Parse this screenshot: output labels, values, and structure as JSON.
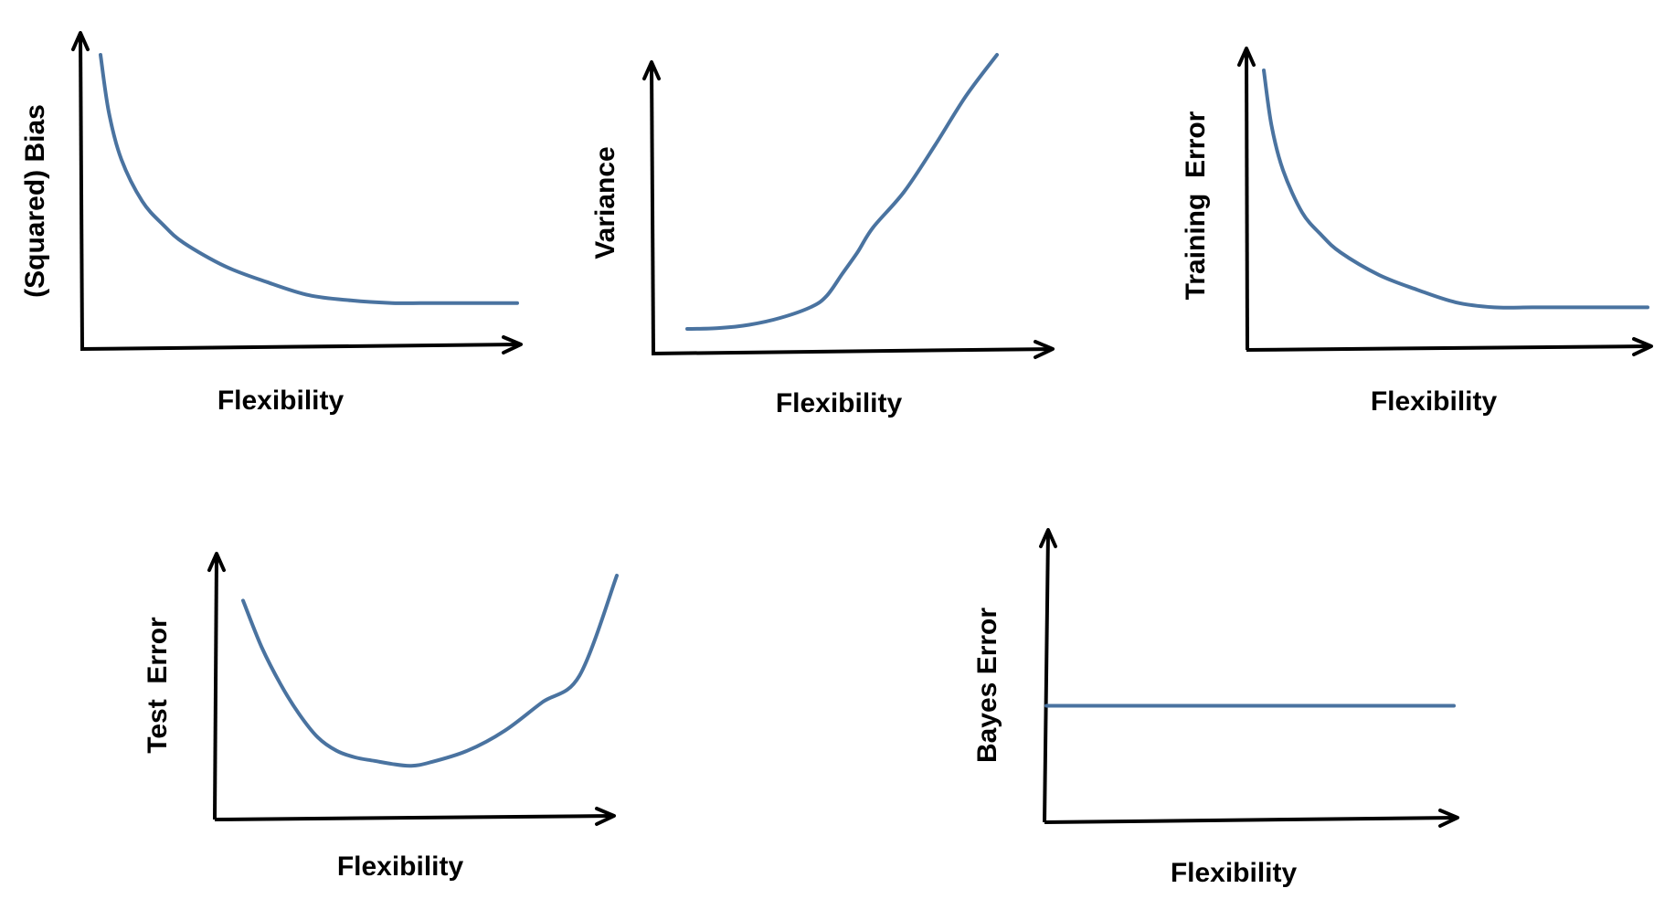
{
  "colors": {
    "curve": "#4a73a0",
    "axis": "#000000",
    "background": "#ffffff"
  },
  "chart_data": [
    {
      "type": "line",
      "title": "",
      "xlabel": "Flexibility",
      "ylabel": "(Squared) Bias",
      "grid": false,
      "x": [
        0.0,
        0.02,
        0.05,
        0.1,
        0.15,
        0.2,
        0.3,
        0.4,
        0.5,
        0.6,
        0.7,
        0.8,
        0.9,
        1.0
      ],
      "y": [
        1.0,
        0.78,
        0.6,
        0.44,
        0.35,
        0.28,
        0.19,
        0.13,
        0.08,
        0.06,
        0.05,
        0.05,
        0.05,
        0.05
      ]
    },
    {
      "type": "line",
      "title": "",
      "xlabel": "Flexibility",
      "ylabel": "Variance",
      "grid": false,
      "x": [
        0.0,
        0.1,
        0.2,
        0.3,
        0.4,
        0.45,
        0.5,
        0.55,
        0.6,
        0.7,
        0.8,
        0.9,
        1.0
      ],
      "y": [
        0.0,
        0.003,
        0.015,
        0.04,
        0.08,
        0.12,
        0.2,
        0.28,
        0.37,
        0.5,
        0.67,
        0.85,
        1.0
      ]
    },
    {
      "type": "line",
      "title": "",
      "xlabel": "Flexibility",
      "ylabel": "Training  Error",
      "grid": false,
      "x": [
        0.0,
        0.02,
        0.05,
        0.1,
        0.15,
        0.2,
        0.3,
        0.4,
        0.5,
        0.6,
        0.7,
        0.8,
        0.9,
        1.0
      ],
      "y": [
        1.0,
        0.78,
        0.6,
        0.43,
        0.34,
        0.27,
        0.18,
        0.12,
        0.07,
        0.05,
        0.05,
        0.05,
        0.05,
        0.05
      ]
    },
    {
      "type": "line",
      "title": "",
      "xlabel": "Flexibility",
      "ylabel": "Test  Error",
      "grid": false,
      "x": [
        0.0,
        0.05,
        0.1,
        0.15,
        0.2,
        0.25,
        0.3,
        0.35,
        0.4,
        0.45,
        0.5,
        0.6,
        0.7,
        0.8,
        0.9,
        1.0
      ],
      "y": [
        1.0,
        0.72,
        0.5,
        0.32,
        0.18,
        0.1,
        0.06,
        0.04,
        0.02,
        0.01,
        0.03,
        0.1,
        0.22,
        0.39,
        0.55,
        1.15
      ]
    },
    {
      "type": "line",
      "title": "",
      "xlabel": "Flexibility",
      "ylabel": "Bayes Error",
      "grid": false,
      "x": [
        0.0,
        1.0
      ],
      "y": [
        0.5,
        0.5
      ]
    }
  ]
}
